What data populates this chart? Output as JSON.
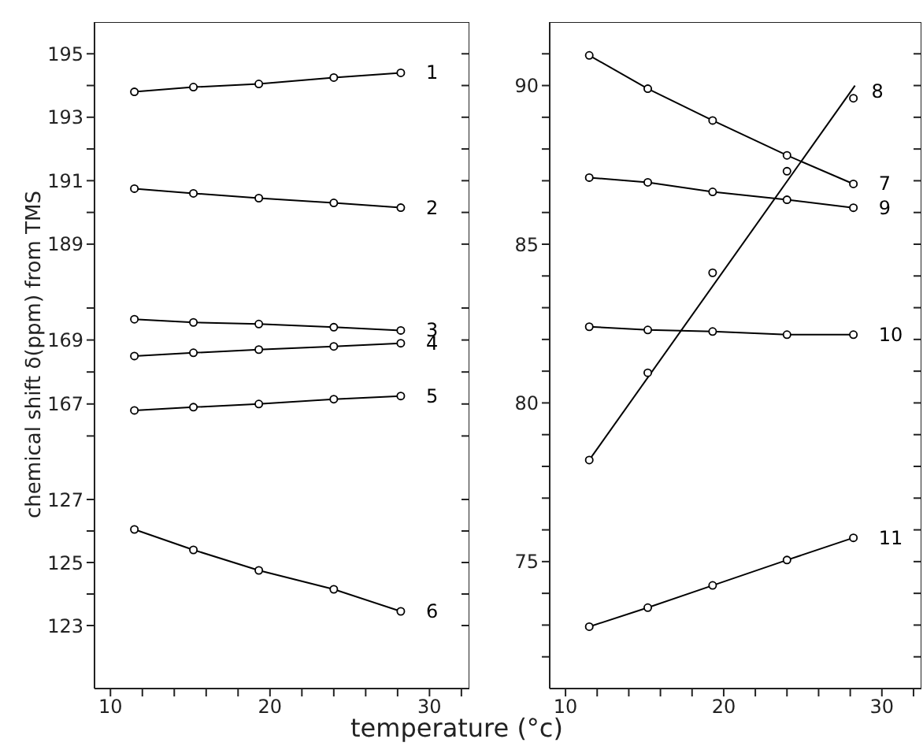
{
  "chart_data": [
    {
      "type": "line",
      "ylabel": "chemical shift δ(ppm) from TMS",
      "x": [
        11.5,
        15.2,
        19.3,
        24.0,
        28.2
      ],
      "xlim": [
        9,
        32.5
      ],
      "ylim": [
        188.6,
        196
      ],
      "yticks": [
        189,
        {
          "value": 190,
          "label": null
        },
        191,
        {
          "value": 192,
          "label": null
        },
        193,
        {
          "value": 194,
          "label": null
        },
        195
      ],
      "marker": "circle",
      "tick_labels": "y",
      "series": [
        {
          "name": "1",
          "color": "#000000",
          "values": [
            193.8,
            193.95,
            194.05,
            194.25,
            194.4
          ]
        },
        {
          "name": "2",
          "color": "#000000",
          "values": [
            190.75,
            190.6,
            190.45,
            190.3,
            190.15
          ]
        }
      ]
    },
    {
      "type": "line",
      "x": [
        11.5,
        15.2,
        19.3,
        24.0,
        28.2
      ],
      "xlim": [
        9,
        32.5
      ],
      "ylim": [
        165,
        171.6
      ],
      "yticks": [
        {
          "value": 166,
          "label": null
        },
        167,
        {
          "value": 168,
          "label": null
        },
        169,
        {
          "value": 170,
          "label": null
        }
      ],
      "marker": "circle",
      "tick_labels": "y",
      "series": [
        {
          "name": "3",
          "color": "#000000",
          "values": [
            169.65,
            169.55,
            169.5,
            169.4,
            169.3
          ]
        },
        {
          "name": "4",
          "color": "#000000",
          "values": [
            168.5,
            168.6,
            168.7,
            168.8,
            168.9
          ]
        },
        {
          "name": "5",
          "color": "#000000",
          "values": [
            166.8,
            166.9,
            167.0,
            167.15,
            167.25
          ]
        }
      ]
    },
    {
      "type": "line",
      "xlabel": "temperature (°c)",
      "x": [
        11.5,
        15.2,
        19.3,
        24.0,
        28.2
      ],
      "xlim": [
        9,
        32.5
      ],
      "xticks": [
        10,
        {
          "value": 12,
          "label": null
        },
        {
          "value": 14,
          "label": null
        },
        {
          "value": 16,
          "label": null
        },
        {
          "value": 18,
          "label": null
        },
        20,
        {
          "value": 22,
          "label": null
        },
        {
          "value": 24,
          "label": null
        },
        {
          "value": 26,
          "label": null
        },
        {
          "value": 28,
          "label": null
        },
        30,
        {
          "value": 32,
          "label": null
        }
      ],
      "ylim": [
        121,
        128
      ],
      "yticks": [
        123,
        {
          "value": 124,
          "label": null
        },
        125,
        {
          "value": 126,
          "label": null
        },
        127
      ],
      "marker": "circle",
      "series": [
        {
          "name": "6",
          "color": "#000000",
          "values": [
            126.05,
            125.4,
            124.75,
            124.15,
            123.45
          ]
        }
      ]
    },
    {
      "type": "line",
      "x": [
        11.5,
        15.2,
        19.3,
        24.0,
        28.2
      ],
      "xlim": [
        9,
        32.5
      ],
      "xticks": [
        10,
        {
          "value": 12,
          "label": null
        },
        {
          "value": 14,
          "label": null
        },
        {
          "value": 16,
          "label": null
        },
        {
          "value": 18,
          "label": null
        },
        20,
        {
          "value": 22,
          "label": null
        },
        {
          "value": 24,
          "label": null
        },
        {
          "value": 26,
          "label": null
        },
        {
          "value": 28,
          "label": null
        },
        30,
        {
          "value": 32,
          "label": null
        }
      ],
      "ylim": [
        71,
        92
      ],
      "yticks": [
        {
          "value": 72,
          "label": null
        },
        {
          "value": 73,
          "label": null
        },
        {
          "value": 74,
          "label": null
        },
        75,
        {
          "value": 76,
          "label": null
        },
        {
          "value": 77,
          "label": null
        },
        {
          "value": 78,
          "label": null
        },
        {
          "value": 79,
          "label": null
        },
        80,
        {
          "value": 81,
          "label": null
        },
        {
          "value": 82,
          "label": null
        },
        {
          "value": 83,
          "label": null
        },
        {
          "value": 84,
          "label": null
        },
        85,
        {
          "value": 86,
          "label": null
        },
        {
          "value": 87,
          "label": null
        },
        {
          "value": 88,
          "label": null
        },
        {
          "value": 89,
          "label": null
        },
        90,
        {
          "value": 91,
          "label": null
        }
      ],
      "marker": "circle",
      "series": [
        {
          "name": "7",
          "color": "#000000",
          "values": [
            90.95,
            89.9,
            88.9,
            87.8,
            86.9
          ]
        },
        {
          "name": "8",
          "type": "scatter",
          "color": "#000000",
          "values": [
            78.2,
            80.95,
            84.1,
            87.3,
            89.6
          ]
        },
        {
          "type": "line",
          "color": "#000000",
          "marker": "none",
          "x": [
            11.5,
            28.3
          ],
          "values": [
            78.2,
            90.0
          ]
        },
        {
          "name": "9",
          "color": "#000000",
          "values": [
            87.1,
            86.95,
            86.65,
            86.4,
            86.15
          ]
        },
        {
          "name": "10",
          "color": "#000000",
          "values": [
            82.4,
            82.3,
            82.25,
            82.15,
            82.15
          ]
        },
        {
          "name": "11",
          "color": "#000000",
          "values": [
            72.95,
            73.55,
            74.25,
            75.05,
            75.75
          ]
        }
      ]
    }
  ]
}
